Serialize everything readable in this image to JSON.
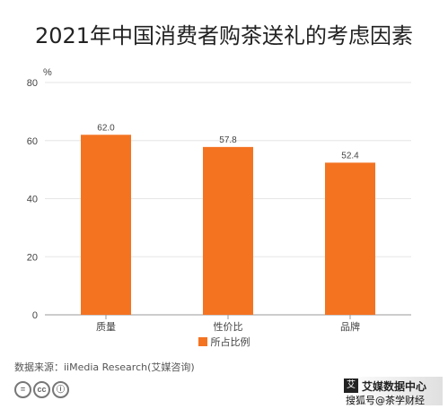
{
  "chart_data": {
    "type": "bar",
    "title": "2021年中国消费者购茶送礼的考虑因素",
    "ylabel": "%",
    "xlabel": "",
    "categories": [
      "质量",
      "性价比",
      "品牌"
    ],
    "series": [
      {
        "name": "所占比例",
        "values": [
          62.0,
          57.8,
          52.4
        ]
      }
    ],
    "data_labels": [
      "62.0",
      "57.8",
      "52.4"
    ],
    "ylim": [
      0,
      80
    ],
    "yticks": [
      0,
      20,
      40,
      60,
      80
    ],
    "grid": true,
    "legend": "bottom-center",
    "bar_color": "#F47321"
  },
  "source": "数据来源：iiMedia Research(艾媒咨询)",
  "watermark": {
    "logo_char": "艾",
    "brand": "艾媒数据中心",
    "sub": "搜狐号@茶学财经"
  },
  "cc_icons": [
    "=",
    "cc",
    "ⓘ"
  ]
}
